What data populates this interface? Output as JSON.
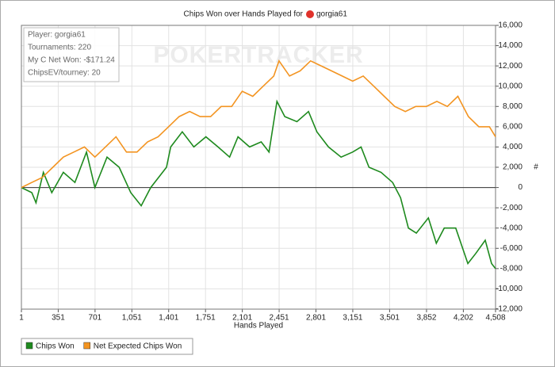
{
  "chart_data": {
    "type": "line",
    "title": "Chips Won over Hands Played for",
    "title_player": "gorgia61",
    "watermark": "POKERTRACKER",
    "info": [
      "Player: gorgia61",
      "Tournaments: 220",
      "My C Net Won: -$171.24",
      "ChipsEV/tourney: 20"
    ],
    "xlabel": "Hands Played",
    "ylabel": "#",
    "xlim": [
      1,
      4508
    ],
    "xticks": [
      1,
      351,
      701,
      {
        "value": 1051,
        "label": "1,051"
      },
      {
        "value": 1401,
        "label": "1,401"
      },
      {
        "value": 1751,
        "label": "1,751"
      },
      {
        "value": 2101,
        "label": "2,101"
      },
      {
        "value": 2451,
        "label": "2,451"
      },
      {
        "value": 2801,
        "label": "2,801"
      },
      {
        "value": 3151,
        "label": "3,151"
      },
      {
        "value": 3501,
        "label": "3,501"
      },
      {
        "value": 3852,
        "label": "3,852"
      },
      {
        "value": 4202,
        "label": "4,202"
      },
      {
        "value": 4508,
        "label": "4,508"
      }
    ],
    "ylim": [
      -12000,
      16000
    ],
    "yticks": [
      {
        "value": -12000,
        "label": "-12,000"
      },
      {
        "value": -10000,
        "label": "-10,000"
      },
      {
        "value": -8000,
        "label": "-8,000"
      },
      {
        "value": -6000,
        "label": "-6,000"
      },
      {
        "value": -4000,
        "label": "-4,000"
      },
      {
        "value": -2000,
        "label": "-2,000"
      },
      0,
      {
        "value": 2000,
        "label": "2,000"
      },
      {
        "value": 4000,
        "label": "4,000"
      },
      {
        "value": 6000,
        "label": "6,000"
      },
      {
        "value": 8000,
        "label": "8,000"
      },
      {
        "value": 10000,
        "label": "10,000"
      },
      {
        "value": 12000,
        "label": "12,000"
      },
      {
        "value": 14000,
        "label": "14,000"
      },
      {
        "value": 16000,
        "label": "16,000"
      }
    ],
    "grid": true,
    "legend": "bottom-left",
    "series": [
      {
        "name": "Chips Won",
        "color": "#1e8a1e",
        "x": [
          1,
          100,
          140,
          210,
          290,
          400,
          510,
          620,
          700,
          815,
          930,
          1040,
          1140,
          1230,
          1380,
          1420,
          1530,
          1640,
          1755,
          1870,
          1980,
          2060,
          2170,
          2280,
          2355,
          2430,
          2505,
          2620,
          2730,
          2810,
          2920,
          3040,
          3150,
          3230,
          3305,
          3420,
          3530,
          3605,
          3680,
          3755,
          3870,
          3945,
          4020,
          4130,
          4245,
          4320,
          4410,
          4470,
          4508
        ],
        "values": [
          0,
          -500,
          -1500,
          1500,
          -500,
          1500,
          500,
          3500,
          0,
          3000,
          2000,
          -500,
          -1800,
          0,
          2000,
          4000,
          5500,
          4000,
          5000,
          4000,
          3000,
          5000,
          4000,
          4500,
          3500,
          8500,
          7000,
          6500,
          7500,
          5500,
          4000,
          3000,
          3500,
          4000,
          2000,
          1500,
          500,
          -1000,
          -4000,
          -4500,
          -3000,
          -5500,
          -4000,
          -4000,
          -7500,
          -6500,
          -5200,
          -7500,
          -8000
        ]
      },
      {
        "name": "Net Expected Chips Won",
        "color": "#f39421",
        "x": [
          1,
          100,
          200,
          300,
          400,
          500,
          600,
          700,
          800,
          900,
          1000,
          1100,
          1200,
          1300,
          1400,
          1500,
          1600,
          1700,
          1800,
          1900,
          2000,
          2100,
          2200,
          2300,
          2400,
          2450,
          2550,
          2650,
          2750,
          2850,
          2950,
          3050,
          3150,
          3250,
          3350,
          3450,
          3550,
          3650,
          3750,
          3850,
          3950,
          4050,
          4150,
          4250,
          4350,
          4450,
          4508
        ],
        "values": [
          0,
          500,
          1000,
          2000,
          3000,
          3500,
          4000,
          3000,
          4000,
          5000,
          3500,
          3500,
          4500,
          5000,
          6000,
          7000,
          7500,
          7000,
          7000,
          8000,
          8000,
          9500,
          9000,
          10000,
          11000,
          12500,
          11000,
          11500,
          12500,
          12000,
          11500,
          11000,
          10500,
          11000,
          10000,
          9000,
          8000,
          7500,
          8000,
          8000,
          8500,
          8000,
          9000,
          7000,
          6000,
          6000,
          5000
        ]
      }
    ]
  }
}
